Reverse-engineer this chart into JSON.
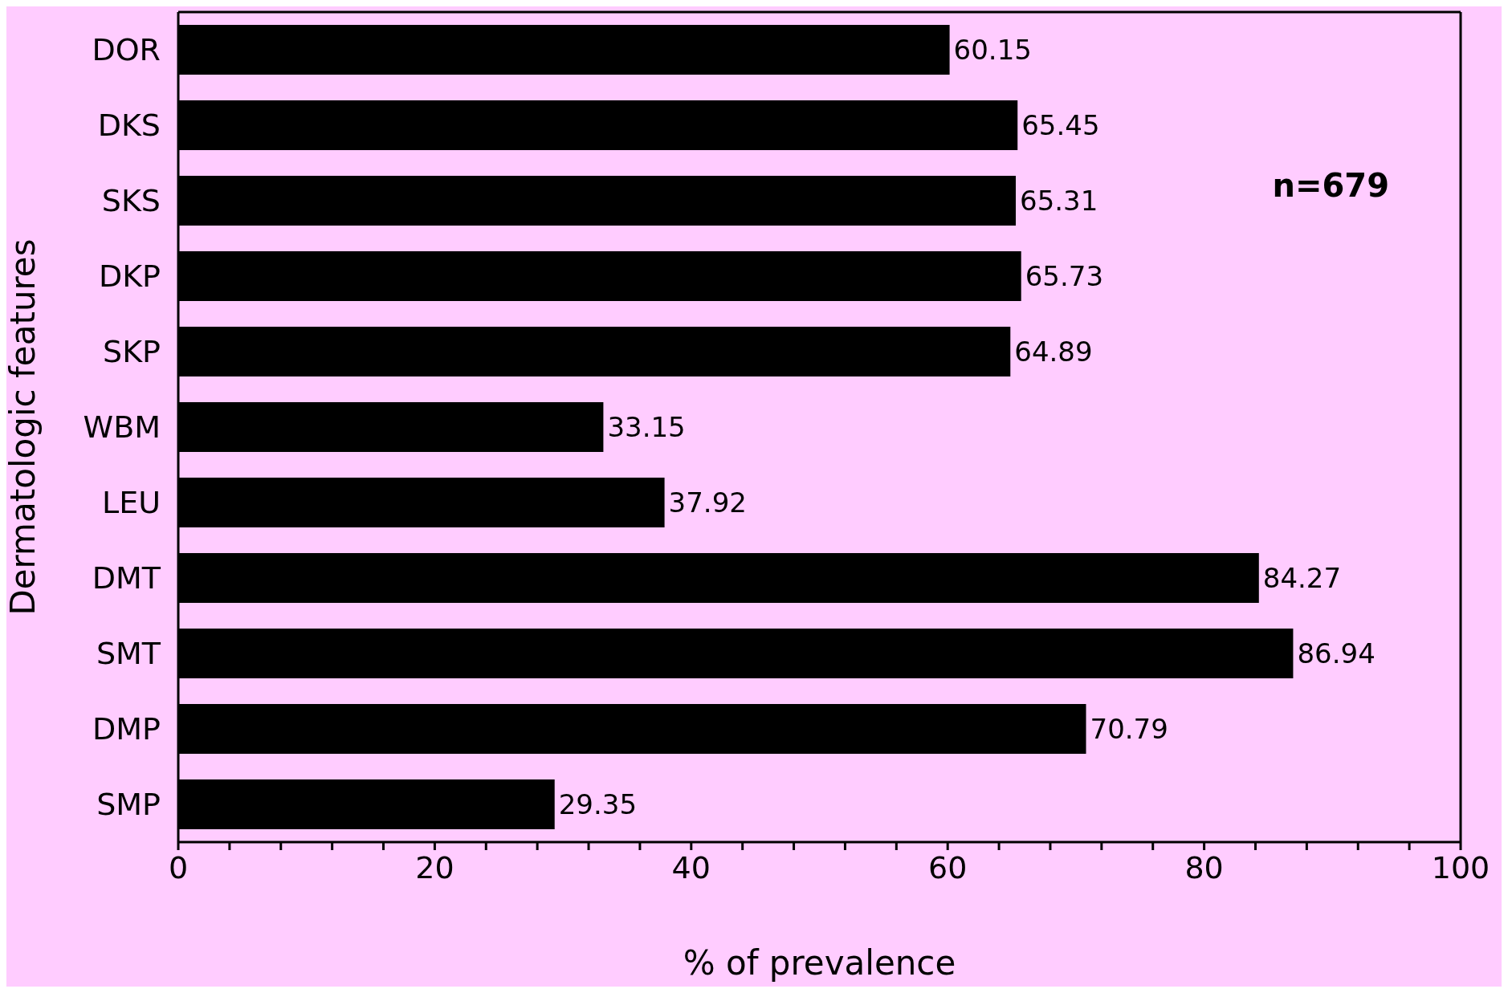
{
  "chart_data": {
    "type": "bar",
    "orientation": "horizontal",
    "xlabel": "% of prevalence",
    "ylabel": "Dermatologic features",
    "categories": [
      "DOR",
      "DKS",
      "SKS",
      "DKP",
      "SKP",
      "WBM",
      "LEU",
      "DMT",
      "SMT",
      "DMP",
      "SMP"
    ],
    "values": [
      60.15,
      65.45,
      65.31,
      65.73,
      64.89,
      33.15,
      37.92,
      84.27,
      86.94,
      70.79,
      29.35
    ],
    "color": "#000000",
    "data_labels": true,
    "xlim": [
      0,
      100
    ],
    "xticks": [
      0,
      {
        "value": 4,
        "label": null
      },
      {
        "value": 8,
        "label": null
      },
      {
        "value": 12,
        "label": null
      },
      {
        "value": 16,
        "label": null
      },
      20,
      {
        "value": 24,
        "label": null
      },
      {
        "value": 28,
        "label": null
      },
      {
        "value": 32,
        "label": null
      },
      {
        "value": 36,
        "label": null
      },
      40,
      {
        "value": 44,
        "label": null
      },
      {
        "value": 48,
        "label": null
      },
      {
        "value": 52,
        "label": null
      },
      {
        "value": 56,
        "label": null
      },
      60,
      {
        "value": 64,
        "label": null
      },
      {
        "value": 68,
        "label": null
      },
      {
        "value": 72,
        "label": null
      },
      {
        "value": 76,
        "label": null
      },
      80,
      {
        "value": 84,
        "label": null
      },
      {
        "value": 88,
        "label": null
      },
      {
        "value": 92,
        "label": null
      },
      {
        "value": 96,
        "label": null
      },
      100
    ],
    "annotations": [
      "n=679"
    ],
    "grid": false,
    "legend": false
  }
}
